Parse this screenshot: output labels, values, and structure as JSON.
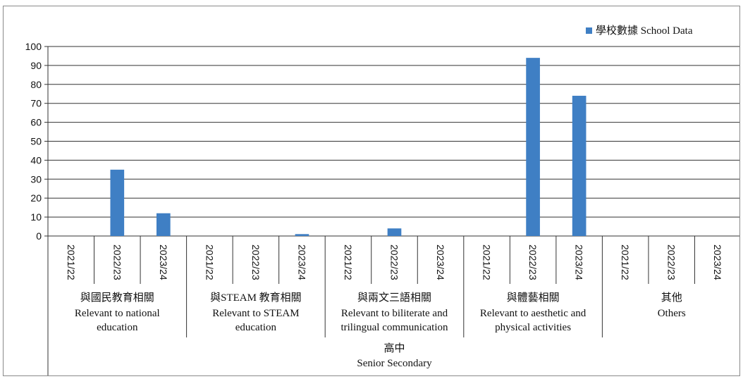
{
  "chart_data": {
    "type": "bar",
    "title": "",
    "xlabel": "",
    "ylabel": "",
    "ylim": [
      0,
      100
    ],
    "yticks": [
      0,
      10,
      20,
      30,
      40,
      50,
      60,
      70,
      80,
      90,
      100
    ],
    "grid": true,
    "legend_position": "top-right",
    "bar_color": "#3f7fc4",
    "top_group": {
      "label_zh": "高中",
      "label_en": "Senior Secondary"
    },
    "groups": [
      {
        "label_zh": "與國民教育相關",
        "label_en": [
          "Relevant to national",
          "education"
        ],
        "categories": [
          "2021/22",
          "2022/23",
          "2023/24"
        ]
      },
      {
        "label_zh": "與STEAM 教育相關",
        "label_en": [
          "Relevant to STEAM",
          "education"
        ],
        "categories": [
          "2021/22",
          "2022/23",
          "2023/24"
        ]
      },
      {
        "label_zh": "與兩文三語相關",
        "label_en": [
          "Relevant to biliterate and",
          "trilingual communication"
        ],
        "categories": [
          "2021/22",
          "2022/23",
          "2023/24"
        ]
      },
      {
        "label_zh": "與體藝相關",
        "label_en": [
          "Relevant to aesthetic and",
          "physical activities"
        ],
        "categories": [
          "2021/22",
          "2022/23",
          "2023/24"
        ]
      },
      {
        "label_zh": "其他",
        "label_en": [
          "Others"
        ],
        "categories": [
          "2021/22",
          "2022/23",
          "2023/24"
        ]
      }
    ],
    "series": [
      {
        "name": "學校數據 School Data",
        "values": [
          0,
          35,
          12,
          0,
          0,
          1,
          0,
          4,
          0,
          0,
          94,
          74,
          0,
          0,
          0
        ]
      }
    ]
  }
}
